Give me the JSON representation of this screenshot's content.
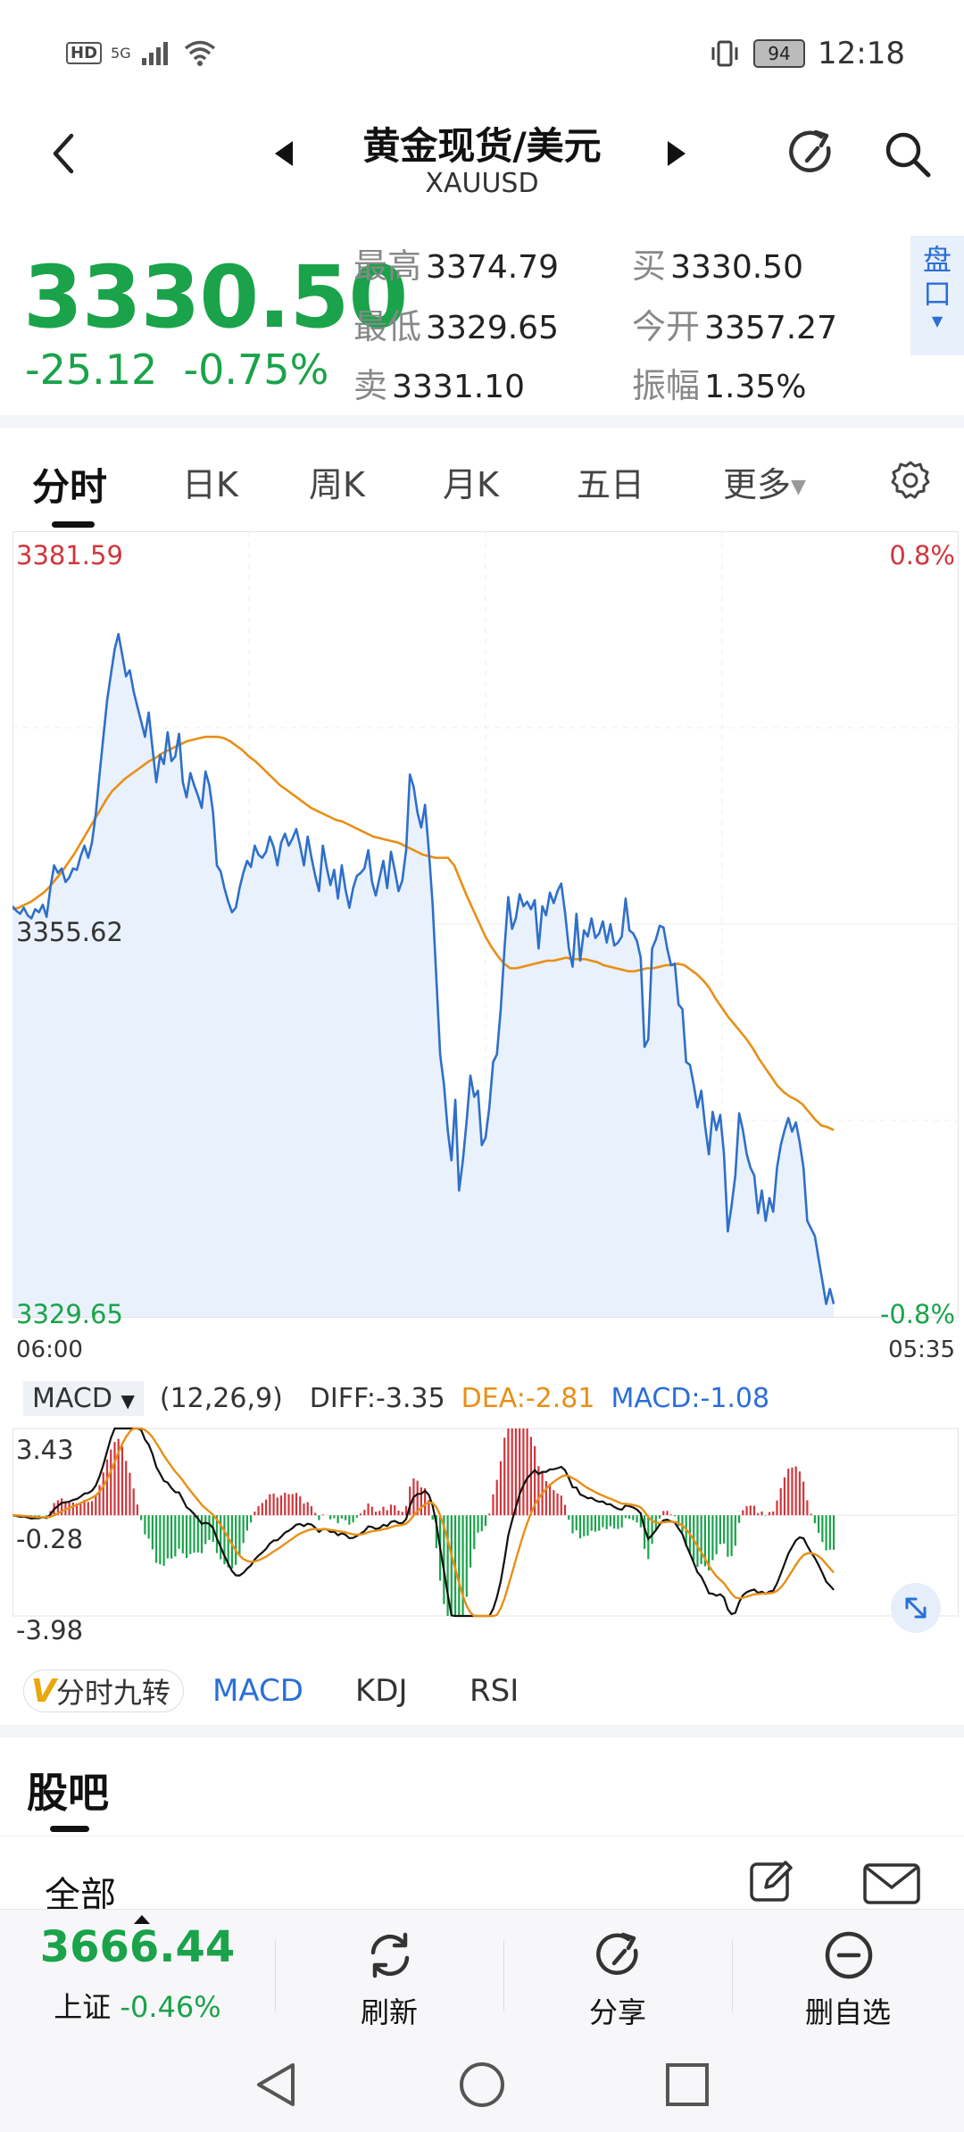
{
  "status_bar": {
    "left_indicators": [
      "HD",
      "5G",
      "signal",
      "wifi"
    ],
    "battery": "94",
    "time": "12:18"
  },
  "header": {
    "title": "黄金现货/美元",
    "subtitle": "XAUUSD"
  },
  "quote": {
    "price": "3330.50",
    "change": "-25.12",
    "change_pct": "-0.75%",
    "high_label": "最高",
    "high": "3374.79",
    "low_label": "最低",
    "low": "3329.65",
    "sell_label": "卖",
    "sell": "3331.10",
    "buy_label": "买",
    "buy": "3330.50",
    "open_label": "今开",
    "open": "3357.27",
    "amp_label": "振幅",
    "amp": "1.35%",
    "side_tab": [
      "盘",
      "口"
    ]
  },
  "chart_tabs": [
    "分时",
    "日K",
    "周K",
    "月K",
    "五日",
    "更多"
  ],
  "colors": {
    "up_red": "#d0363c",
    "down_green": "#1aa34a",
    "price_line": "#2f6fc9",
    "avg_line": "#e88f17",
    "fill": "#e8f1fc",
    "accent_blue": "#2a6fd6"
  },
  "chart_data": {
    "type": "line",
    "y_top_label": "3381.59",
    "y_mid_label": "3355.62",
    "y_bottom_label": "3329.65",
    "pct_top_label": "0.8%",
    "pct_bottom_label": "-0.8%",
    "x_start_label": "06:00",
    "x_end_label": "05:35",
    "ylim": [
      3329.65,
      3381.59
    ],
    "series": [
      {
        "values": [
          3356.8,
          3356.5,
          3356.3,
          3356.7,
          3356.2,
          3356.0,
          3356.6,
          3356.4,
          3356.9,
          3356.1,
          3358.0,
          3359.5,
          3359.0,
          3359.3,
          3358.4,
          3358.7,
          3359.3,
          3359.2,
          3360.1,
          3360.8,
          3360.0,
          3361.0,
          3362.9,
          3365.5,
          3368.0,
          3370.4,
          3372.1,
          3373.8,
          3374.79,
          3373.4,
          3372.0,
          3372.4,
          3371.0,
          3370.0,
          3369.0,
          3368.0,
          3369.6,
          3367.2,
          3365.0,
          3366.8,
          3366.2,
          3368.3,
          3366.4,
          3366.7,
          3368.2,
          3365.0,
          3364.0,
          3365.6,
          3364.8,
          3364.1,
          3363.3,
          3365.7,
          3364.8,
          3363.0,
          3359.5,
          3359.1,
          3358.0,
          3357.1,
          3356.4,
          3356.7,
          3358.0,
          3359.0,
          3359.8,
          3359.4,
          3360.8,
          3360.2,
          3360.0,
          3360.4,
          3361.4,
          3360.7,
          3359.5,
          3361.0,
          3361.6,
          3360.8,
          3361.3,
          3361.9,
          3360.8,
          3359.5,
          3361.4,
          3360.0,
          3358.8,
          3357.8,
          3360.8,
          3359.4,
          3358.2,
          3359.2,
          3357.3,
          3359.5,
          3357.9,
          3356.7,
          3358.0,
          3358.8,
          3359.0,
          3359.3,
          3360.5,
          3358.4,
          3357.5,
          3358.7,
          3359.8,
          3358.0,
          3360.4,
          3359.2,
          3357.8,
          3358.5,
          3360.5,
          3365.5,
          3364.7,
          3363.0,
          3362.0,
          3363.5,
          3360.5,
          3357.0,
          3352.0,
          3347.0,
          3345.0,
          3342.0,
          3340.0,
          3344.0,
          3338.0,
          3340.0,
          3342.6,
          3345.6,
          3344.2,
          3344.6,
          3341.0,
          3341.5,
          3343.5,
          3346.5,
          3347.0,
          3350.0,
          3354.0,
          3357.4,
          3355.3,
          3356.0,
          3357.6,
          3356.8,
          3357.1,
          3356.6,
          3357.2,
          3354.0,
          3356.8,
          3356.2,
          3357.7,
          3357.0,
          3357.8,
          3358.3,
          3356.4,
          3354.0,
          3352.8,
          3356.3,
          3353.2,
          3355.2,
          3354.8,
          3356.0,
          3354.7,
          3355.0,
          3355.8,
          3354.4,
          3355.6,
          3354.2,
          3354.4,
          3354.8,
          3357.3,
          3355.2,
          3355.0,
          3354.5,
          3353.4,
          3347.5,
          3348.0,
          3354.0,
          3354.6,
          3355.5,
          3355.4,
          3354.0,
          3352.9,
          3353.0,
          3350.3,
          3350.0,
          3346.5,
          3346.3,
          3345.0,
          3343.5,
          3344.6,
          3342.3,
          3340.4,
          3343.2,
          3342.0,
          3343.0,
          3340.4,
          3335.3,
          3337.0,
          3339.0,
          3343.1,
          3342.0,
          3340.4,
          3339.5,
          3339.0,
          3336.5,
          3338.0,
          3336.0,
          3337.5,
          3336.6,
          3339.5,
          3341.0,
          3342.0,
          3342.8,
          3341.9,
          3342.5,
          3341.2,
          3339.5,
          3336.0,
          3335.5,
          3335.0,
          3333.5,
          3332.0,
          3330.5,
          3331.5,
          3330.5
        ]
      },
      {
        "values": [
          3356.6,
          3356.7,
          3356.9,
          3357.1,
          3357.4,
          3357.7,
          3358.1,
          3358.6,
          3359.1,
          3359.7,
          3360.3,
          3361.0,
          3361.7,
          3362.4,
          3363.1,
          3363.8,
          3364.4,
          3364.8,
          3365.2,
          3365.5,
          3365.8,
          3366.1,
          3366.4,
          3366.6,
          3366.9,
          3367.1,
          3367.3,
          3367.5,
          3367.7,
          3367.8,
          3367.9,
          3368.0,
          3368.0,
          3368.0,
          3367.9,
          3367.7,
          3367.4,
          3367.1,
          3366.7,
          3366.4,
          3366.0,
          3365.6,
          3365.2,
          3364.8,
          3364.5,
          3364.2,
          3363.9,
          3363.6,
          3363.3,
          3363.1,
          3362.9,
          3362.7,
          3362.5,
          3362.4,
          3362.2,
          3362.0,
          3361.8,
          3361.6,
          3361.4,
          3361.3,
          3361.2,
          3361.1,
          3361.0,
          3360.8,
          3360.6,
          3360.4,
          3360.2,
          3360.1,
          3360.0,
          3360.0,
          3360.0,
          3359.5,
          3358.5,
          3357.5,
          3356.6,
          3355.7,
          3354.8,
          3354.1,
          3353.5,
          3353.0,
          3352.7,
          3352.7,
          3352.8,
          3352.9,
          3353.0,
          3353.1,
          3353.2,
          3353.2,
          3353.3,
          3353.4,
          3353.3,
          3353.3,
          3353.3,
          3353.2,
          3353.1,
          3352.9,
          3352.8,
          3352.7,
          3352.6,
          3352.5,
          3352.5,
          3352.6,
          3352.7,
          3352.7,
          3352.8,
          3352.9,
          3352.9,
          3353.0,
          3352.9,
          3352.6,
          3352.3,
          3351.9,
          3351.4,
          3350.7,
          3350.1,
          3349.5,
          3349.0,
          3348.5,
          3348.0,
          3347.4,
          3346.7,
          3346.1,
          3345.5,
          3344.9,
          3344.5,
          3344.2,
          3344.0,
          3343.7,
          3343.2,
          3342.7,
          3342.3,
          3342.2,
          3342.0
        ]
      }
    ]
  },
  "macd": {
    "label": "MACD",
    "params": "(12,26,9)",
    "diff": "DIFF:-3.35",
    "dea": "DEA:-2.81",
    "macd": "MACD:-1.08",
    "y_top": "3.43",
    "y_mid": "-0.28",
    "y_bottom": "-3.98",
    "ylim": [
      -3.98,
      3.43
    ]
  },
  "indicator_tabs": {
    "nine_turn": "分时九转",
    "nine_badge": "V",
    "tabs": [
      "MACD",
      "KDJ",
      "RSI"
    ]
  },
  "guba": {
    "title": "股吧",
    "filter": "全部"
  },
  "bottom_bar": {
    "index_value": "3666.44",
    "index_name": "上证",
    "index_change": "-0.46%",
    "refresh": "刷新",
    "share": "分享",
    "remove": "删自选"
  }
}
